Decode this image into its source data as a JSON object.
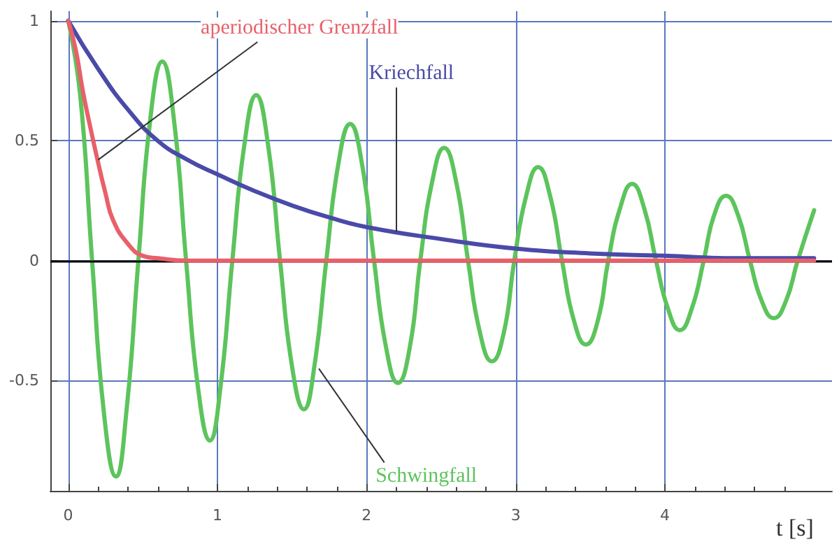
{
  "chart_data": {
    "type": "line",
    "xlabel": "t [s]",
    "xlim": [
      -0.12,
      5.12
    ],
    "ylim": [
      -0.96,
      1.04
    ],
    "xticks": [
      0,
      1,
      2,
      3,
      4
    ],
    "yticks": [
      -0.5,
      0,
      0.5,
      1
    ],
    "grid": true,
    "marker": "none",
    "line_style": "solid",
    "ref_lines": [
      {
        "axis": "y",
        "value": 0,
        "color": "#000000"
      }
    ],
    "series": [
      {
        "name": "Schwingfall",
        "color": "#5cc45c",
        "x": [
          0,
          0.08,
          0.16,
          0.24,
          0.32,
          0.39,
          0.47,
          0.55,
          0.63,
          0.71,
          0.79,
          0.87,
          0.95,
          1.02,
          1.1,
          1.18,
          1.26,
          1.34,
          1.42,
          1.5,
          1.58,
          1.65,
          1.73,
          1.81,
          1.89,
          1.97,
          2.05,
          2.13,
          2.21,
          2.29,
          2.36,
          2.44,
          2.52,
          2.6,
          2.68,
          2.76,
          2.84,
          2.92,
          2.99,
          3.07,
          3.15,
          3.23,
          3.31,
          3.39,
          3.47,
          3.55,
          3.62,
          3.7,
          3.78,
          3.86,
          3.94,
          4.02,
          4.1,
          4.18,
          4.26,
          4.33,
          4.41,
          4.49,
          4.57,
          4.65,
          4.73,
          4.81,
          4.89,
          5.0
        ],
        "values": [
          1,
          0.69,
          0,
          -0.64,
          -0.9,
          -0.63,
          0,
          0.59,
          0.83,
          0.58,
          0,
          -0.53,
          -0.75,
          -0.53,
          0,
          0.48,
          0.69,
          0.48,
          0,
          -0.44,
          -0.62,
          -0.44,
          0,
          0.4,
          0.57,
          0.4,
          0,
          -0.36,
          -0.51,
          -0.36,
          0,
          0.33,
          0.47,
          0.33,
          0,
          -0.3,
          -0.42,
          -0.3,
          0,
          0.27,
          0.39,
          0.27,
          0,
          -0.25,
          -0.35,
          -0.25,
          0,
          0.22,
          0.32,
          0.22,
          0,
          -0.2,
          -0.29,
          -0.2,
          0,
          0.19,
          0.27,
          0.19,
          0,
          -0.17,
          -0.24,
          -0.17,
          0,
          0.21
        ]
      },
      {
        "name": "Kriechfall",
        "color": "#4a4aa8",
        "x": [
          0,
          0.2,
          0.4,
          0.6,
          0.8,
          1,
          1.25,
          1.5,
          1.75,
          2,
          2.5,
          3,
          3.5,
          4,
          4.5,
          5
        ],
        "values": [
          1,
          0.8,
          0.63,
          0.5,
          0.42,
          0.36,
          0.29,
          0.23,
          0.18,
          0.14,
          0.09,
          0.05,
          0.03,
          0.02,
          0.01,
          0.01
        ]
      },
      {
        "name": "aperiodischer Grenzfall",
        "color": "#e8606a",
        "x": [
          0,
          0.05,
          0.1,
          0.15,
          0.2,
          0.25,
          0.3,
          0.4,
          0.5,
          0.6,
          0.8,
          5
        ],
        "values": [
          1,
          0.88,
          0.7,
          0.55,
          0.41,
          0.28,
          0.17,
          0.07,
          0.02,
          0.01,
          0,
          0
        ]
      }
    ]
  }
}
